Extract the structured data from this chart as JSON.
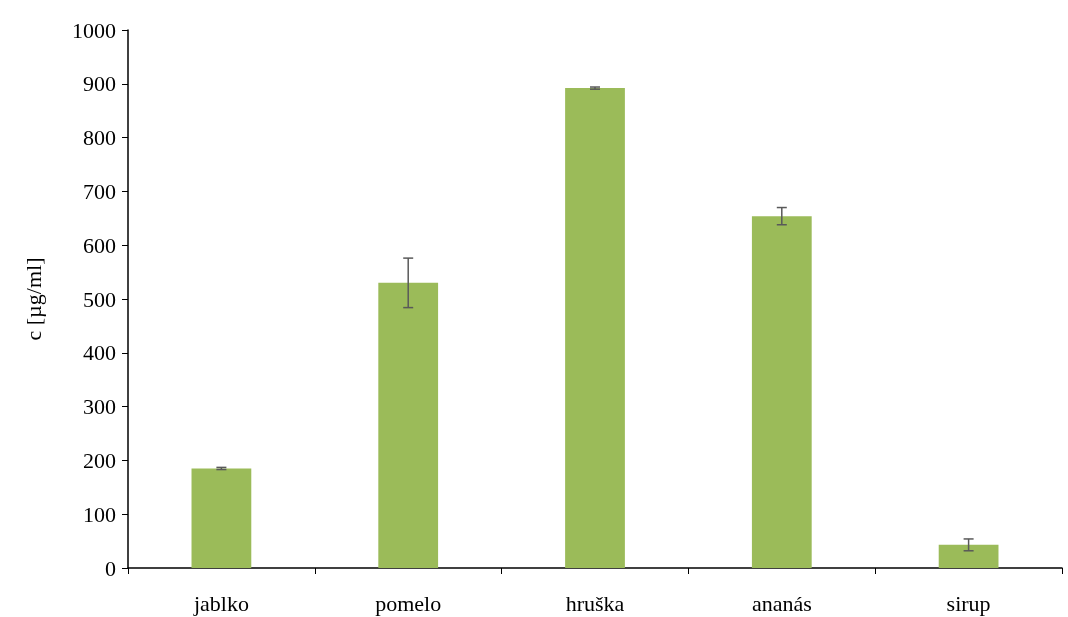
{
  "chart_data": {
    "type": "bar",
    "ylabel": "c [µg/ml]",
    "categories": [
      "jablko",
      "pomelo",
      "hruška",
      "ananás",
      "sirup"
    ],
    "values": [
      185,
      530,
      892,
      654,
      43
    ],
    "errors": [
      2,
      46,
      2,
      16,
      11
    ],
    "color": "#9bbb59",
    "ylim": [
      0,
      1000
    ],
    "yticks": [
      0,
      100,
      200,
      300,
      400,
      500,
      600,
      700,
      800,
      900,
      1000
    ],
    "grid": false
  }
}
